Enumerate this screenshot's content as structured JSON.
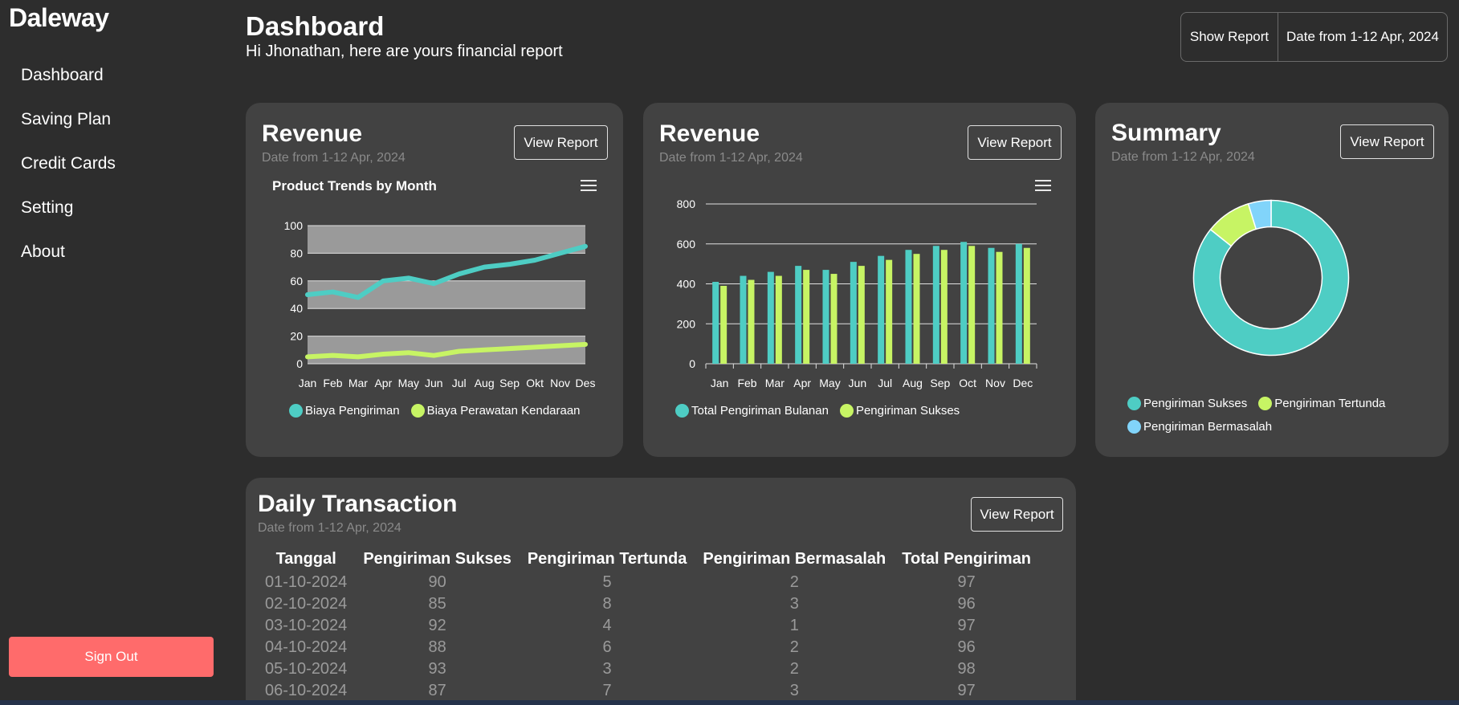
{
  "app": {
    "brand": "Daleway"
  },
  "sidebar": {
    "items": [
      {
        "label": "Dashboard"
      },
      {
        "label": "Saving Plan"
      },
      {
        "label": "Credit Cards"
      },
      {
        "label": "Setting"
      },
      {
        "label": "About"
      }
    ],
    "signout_label": "Sign Out"
  },
  "header": {
    "title": "Dashboard",
    "subtitle": "Hi Jhonathan, here are yours financial report",
    "show_report_label": "Show Report",
    "date_range_label": "Date from 1-12 Apr, 2024"
  },
  "colors": {
    "background": "#2d2d2d",
    "card": "#424242",
    "teal": "#4ecdc4",
    "lime": "#c7f464",
    "sky": "#81d4fa",
    "signout": "#ff6b6b"
  },
  "cards": {
    "revenue1": {
      "title": "Revenue",
      "date": "Date from 1-12 Apr, 2024",
      "button": "View Report",
      "menu_icon": "hamburger-menu-icon"
    },
    "revenue2": {
      "title": "Revenue",
      "date": "Date from 1-12 Apr, 2024",
      "button": "View Report",
      "menu_icon": "hamburger-menu-icon"
    },
    "summary": {
      "title": "Summary",
      "date": "Date from 1-12 Apr, 2024",
      "button": "View Report"
    },
    "daily": {
      "title": "Daily Transaction",
      "date": "Date from 1-12 Apr, 2024",
      "button": "View Report"
    }
  },
  "chart_data": [
    {
      "type": "line",
      "title": "Product Trends by Month",
      "categories": [
        "Jan",
        "Feb",
        "Mar",
        "Apr",
        "May",
        "Jun",
        "Jul",
        "Aug",
        "Sep",
        "Okt",
        "Nov",
        "Des"
      ],
      "ylim": [
        0,
        100
      ],
      "yticks": [
        0,
        20,
        40,
        60,
        80,
        100
      ],
      "grid": "alternating bands",
      "legend": "bottom",
      "series": [
        {
          "name": "Biaya Pengiriman",
          "color": "#4ecdc4",
          "values": [
            50,
            52,
            48,
            60,
            62,
            58,
            65,
            70,
            72,
            75,
            80,
            85
          ]
        },
        {
          "name": "Biaya Perawatan Kendaraan",
          "color": "#c7f464",
          "values": [
            5,
            6,
            5,
            7,
            8,
            6,
            9,
            10,
            11,
            12,
            13,
            14
          ]
        }
      ]
    },
    {
      "type": "bar",
      "categories": [
        "Jan",
        "Feb",
        "Mar",
        "Apr",
        "May",
        "Jun",
        "Jul",
        "Aug",
        "Sep",
        "Oct",
        "Nov",
        "Dec"
      ],
      "ylim": [
        0,
        800
      ],
      "yticks": [
        0,
        200,
        400,
        600,
        800
      ],
      "grid": true,
      "legend": "bottom",
      "series": [
        {
          "name": "Total Pengiriman Bulanan",
          "color": "#4ecdc4",
          "values": [
            410,
            440,
            460,
            490,
            470,
            510,
            540,
            570,
            590,
            610,
            580,
            600
          ]
        },
        {
          "name": "Pengiriman Sukses",
          "color": "#c7f464",
          "values": [
            390,
            420,
            440,
            470,
            450,
            490,
            520,
            550,
            570,
            590,
            560,
            580
          ]
        }
      ]
    },
    {
      "type": "pie",
      "variant": "donut",
      "legend": "bottom",
      "series": [
        {
          "name": "Pengiriman Sukses",
          "color": "#4ecdc4",
          "values": [
            90
          ]
        },
        {
          "name": "Pengiriman Tertunda",
          "color": "#c7f464",
          "values": [
            10
          ]
        },
        {
          "name": "Pengiriman Bermasalah",
          "color": "#81d4fa",
          "values": [
            5
          ]
        }
      ]
    }
  ],
  "daily_table": {
    "headers": [
      "Tanggal",
      "Pengiriman Sukses",
      "Pengiriman Tertunda",
      "Pengiriman Bermasalah",
      "Total Pengiriman"
    ],
    "rows": [
      [
        "01-10-2024",
        "90",
        "5",
        "2",
        "97"
      ],
      [
        "02-10-2024",
        "85",
        "8",
        "3",
        "96"
      ],
      [
        "03-10-2024",
        "92",
        "4",
        "1",
        "97"
      ],
      [
        "04-10-2024",
        "88",
        "6",
        "2",
        "96"
      ],
      [
        "05-10-2024",
        "93",
        "3",
        "2",
        "98"
      ],
      [
        "06-10-2024",
        "87",
        "7",
        "3",
        "97"
      ]
    ]
  }
}
